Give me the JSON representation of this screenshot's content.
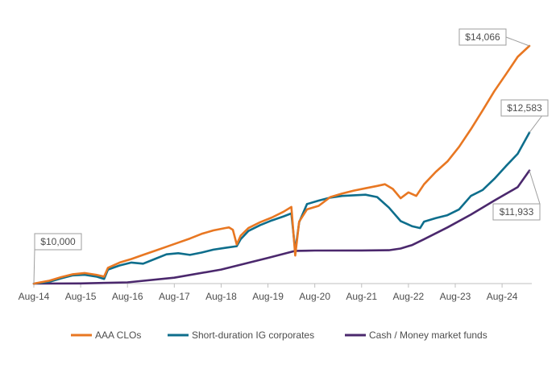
{
  "chart_data": {
    "type": "line",
    "x_ticks": [
      "Aug-14",
      "Aug-15",
      "Aug-16",
      "Aug-17",
      "Aug-18",
      "Aug-19",
      "Aug-20",
      "Aug-21",
      "Aug-22",
      "Aug-23",
      "Aug-24"
    ],
    "ylim": [
      10000,
      14300
    ],
    "grid": false,
    "legend_position": "bottom",
    "series": [
      {
        "name": "AAA CLOs",
        "color": "#E87722",
        "points": [
          [
            "2014-08",
            10000
          ],
          [
            "2014-12",
            10050
          ],
          [
            "2015-03",
            10110
          ],
          [
            "2015-06",
            10160
          ],
          [
            "2015-09",
            10180
          ],
          [
            "2015-12",
            10150
          ],
          [
            "2016-02",
            10120
          ],
          [
            "2016-03",
            10270
          ],
          [
            "2016-06",
            10360
          ],
          [
            "2016-09",
            10420
          ],
          [
            "2016-12",
            10490
          ],
          [
            "2017-03",
            10560
          ],
          [
            "2017-06",
            10630
          ],
          [
            "2017-09",
            10700
          ],
          [
            "2017-12",
            10770
          ],
          [
            "2018-03",
            10850
          ],
          [
            "2018-06",
            10910
          ],
          [
            "2018-09",
            10950
          ],
          [
            "2018-10",
            10960
          ],
          [
            "2018-11",
            10920
          ],
          [
            "2018-12",
            10670
          ],
          [
            "2019-01",
            10820
          ],
          [
            "2019-03",
            10950
          ],
          [
            "2019-06",
            11050
          ],
          [
            "2019-09",
            11130
          ],
          [
            "2019-12",
            11230
          ],
          [
            "2020-02",
            11310
          ],
          [
            "2020-03",
            10480
          ],
          [
            "2020-04",
            11060
          ],
          [
            "2020-06",
            11270
          ],
          [
            "2020-09",
            11330
          ],
          [
            "2020-12",
            11480
          ],
          [
            "2021-03",
            11540
          ],
          [
            "2021-06",
            11590
          ],
          [
            "2021-09",
            11630
          ],
          [
            "2021-12",
            11670
          ],
          [
            "2022-02",
            11700
          ],
          [
            "2022-04",
            11620
          ],
          [
            "2022-06",
            11460
          ],
          [
            "2022-08",
            11560
          ],
          [
            "2022-10",
            11500
          ],
          [
            "2022-12",
            11700
          ],
          [
            "2023-03",
            11910
          ],
          [
            "2023-06",
            12090
          ],
          [
            "2023-09",
            12340
          ],
          [
            "2023-12",
            12640
          ],
          [
            "2024-03",
            12960
          ],
          [
            "2024-06",
            13290
          ],
          [
            "2024-09",
            13580
          ],
          [
            "2024-12",
            13880
          ],
          [
            "2025-03",
            14066
          ]
        ]
      },
      {
        "name": "Short-duration IG corporates",
        "color": "#0E6E8C",
        "points": [
          [
            "2014-08",
            10000
          ],
          [
            "2014-12",
            10030
          ],
          [
            "2015-03",
            10090
          ],
          [
            "2015-06",
            10140
          ],
          [
            "2015-09",
            10150
          ],
          [
            "2015-12",
            10120
          ],
          [
            "2016-02",
            10080
          ],
          [
            "2016-03",
            10240
          ],
          [
            "2016-06",
            10310
          ],
          [
            "2016-09",
            10360
          ],
          [
            "2016-12",
            10340
          ],
          [
            "2017-03",
            10420
          ],
          [
            "2017-06",
            10500
          ],
          [
            "2017-09",
            10520
          ],
          [
            "2017-12",
            10490
          ],
          [
            "2018-03",
            10530
          ],
          [
            "2018-06",
            10580
          ],
          [
            "2018-09",
            10610
          ],
          [
            "2018-12",
            10640
          ],
          [
            "2019-01",
            10760
          ],
          [
            "2019-03",
            10900
          ],
          [
            "2019-06",
            11000
          ],
          [
            "2019-09",
            11080
          ],
          [
            "2019-12",
            11150
          ],
          [
            "2020-02",
            11200
          ],
          [
            "2020-03",
            10560
          ],
          [
            "2020-04",
            11050
          ],
          [
            "2020-06",
            11360
          ],
          [
            "2020-09",
            11420
          ],
          [
            "2020-12",
            11470
          ],
          [
            "2021-03",
            11500
          ],
          [
            "2021-06",
            11510
          ],
          [
            "2021-09",
            11520
          ],
          [
            "2021-12",
            11480
          ],
          [
            "2022-03",
            11300
          ],
          [
            "2022-06",
            11070
          ],
          [
            "2022-09",
            10980
          ],
          [
            "2022-11",
            10950
          ],
          [
            "2022-12",
            11060
          ],
          [
            "2023-03",
            11120
          ],
          [
            "2023-06",
            11170
          ],
          [
            "2023-09",
            11270
          ],
          [
            "2023-12",
            11500
          ],
          [
            "2024-03",
            11600
          ],
          [
            "2024-06",
            11790
          ],
          [
            "2024-09",
            12010
          ],
          [
            "2024-12",
            12220
          ],
          [
            "2025-03",
            12583
          ]
        ]
      },
      {
        "name": "Cash / Money market funds",
        "color": "#4B286D",
        "points": [
          [
            "2014-08",
            10000
          ],
          [
            "2015-08",
            10003
          ],
          [
            "2016-08",
            10020
          ],
          [
            "2017-08",
            10100
          ],
          [
            "2018-08",
            10240
          ],
          [
            "2019-08",
            10440
          ],
          [
            "2020-03",
            10560
          ],
          [
            "2020-08",
            10565
          ],
          [
            "2021-08",
            10566
          ],
          [
            "2022-03",
            10570
          ],
          [
            "2022-06",
            10600
          ],
          [
            "2022-09",
            10660
          ],
          [
            "2022-12",
            10760
          ],
          [
            "2023-06",
            10960
          ],
          [
            "2023-12",
            11180
          ],
          [
            "2024-06",
            11420
          ],
          [
            "2024-12",
            11650
          ],
          [
            "2025-03",
            11933
          ]
        ]
      }
    ],
    "callouts": [
      {
        "label": "$10,000",
        "series": 0,
        "date": "2014-08"
      },
      {
        "label": "$14,066",
        "series": 0,
        "date": "2025-03"
      },
      {
        "label": "$12,583",
        "series": 1,
        "date": "2025-03"
      },
      {
        "label": "$11,933",
        "series": 2,
        "date": "2025-03"
      }
    ],
    "axis_color": "#bfbfbf"
  }
}
